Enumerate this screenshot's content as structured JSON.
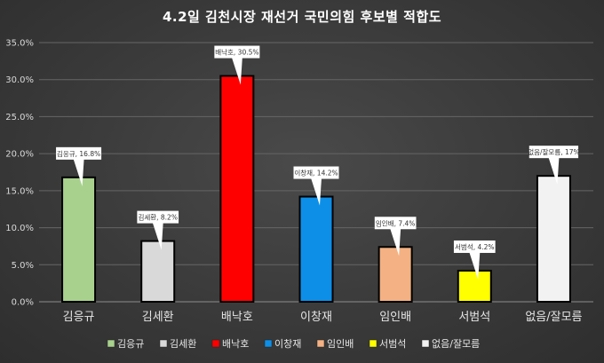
{
  "chart_data": {
    "type": "bar",
    "title": "4.2일 김천시장 재선거 국민의힘 후보별 적합도",
    "categories": [
      "김응규",
      "김세환",
      "배낙호",
      "이창재",
      "임인배",
      "서범석",
      "없음/잘모름"
    ],
    "values": [
      16.8,
      8.2,
      30.5,
      14.2,
      7.4,
      4.2,
      17
    ],
    "data_labels": [
      "김응규, 16.8%",
      "김세환, 8.2%",
      "배낙호, 30.5%",
      "이창재, 14.2%",
      "임인배, 7.4%",
      "서범석, 4.2%",
      "없음/잘모름, 17%"
    ],
    "colors": [
      "#a9d18e",
      "#d9d9d9",
      "#ff0000",
      "#0d8fe8",
      "#f4b183",
      "#ffff00",
      "#f2f2f2"
    ],
    "legend": [
      "김응규",
      "김세환",
      "배낙호",
      "이창재",
      "임인배",
      "서범석",
      "없음/잘모름"
    ],
    "legend_position": "bottom",
    "y_ticks": [
      "0.0%",
      "5.0%",
      "10.0%",
      "15.0%",
      "20.0%",
      "25.0%",
      "30.0%",
      "35.0%"
    ],
    "ylim": [
      0,
      35
    ],
    "grid": true,
    "bar_outline": "#000000"
  }
}
